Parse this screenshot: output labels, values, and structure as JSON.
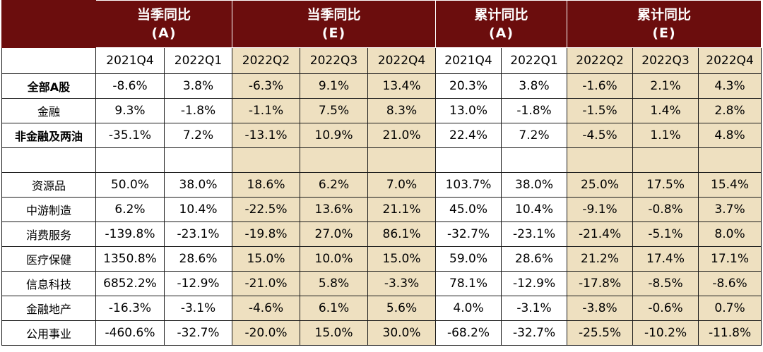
{
  "header": {
    "groups": [
      {
        "line1": "当季同比",
        "line2": "(A)",
        "span": 2
      },
      {
        "line1": "当季同比",
        "line2": "(E)",
        "span": 3
      },
      {
        "line1": "累计同比",
        "line2": "(A)",
        "span": 2
      },
      {
        "line1": "累计同比",
        "line2": "(E)",
        "span": 3
      }
    ],
    "quarters": [
      "2021Q4",
      "2022Q1",
      "2022Q2",
      "2022Q3",
      "2022Q4",
      "2021Q4",
      "2022Q1",
      "2022Q2",
      "2022Q3",
      "2022Q4"
    ]
  },
  "rows": [
    {
      "label": "全部A股",
      "bold": true,
      "values": [
        "-8.6%",
        "3.8%",
        "-6.3%",
        "9.1%",
        "13.4%",
        "20.3%",
        "3.8%",
        "-1.6%",
        "2.1%",
        "4.3%"
      ]
    },
    {
      "label": "金融",
      "bold": false,
      "values": [
        "9.3%",
        "-1.8%",
        "-1.1%",
        "7.5%",
        "8.3%",
        "13.0%",
        "-1.8%",
        "-1.5%",
        "1.4%",
        "2.8%"
      ]
    },
    {
      "label": "非金融及两油",
      "bold": true,
      "values": [
        "-35.1%",
        "7.2%",
        "-13.1%",
        "10.9%",
        "21.0%",
        "22.4%",
        "7.2%",
        "-4.5%",
        "1.1%",
        "4.8%"
      ]
    },
    {
      "label": "",
      "bold": false,
      "blank": true,
      "values": [
        "",
        "",
        "",
        "",
        "",
        "",
        "",
        "",
        "",
        ""
      ]
    },
    {
      "label": "资源品",
      "bold": false,
      "values": [
        "50.0%",
        "38.0%",
        "18.6%",
        "6.2%",
        "7.0%",
        "103.7%",
        "38.0%",
        "25.0%",
        "17.5%",
        "15.4%"
      ]
    },
    {
      "label": "中游制造",
      "bold": false,
      "values": [
        "6.2%",
        "10.4%",
        "-22.5%",
        "13.6%",
        "21.1%",
        "45.0%",
        "10.4%",
        "-9.1%",
        "-0.8%",
        "3.7%"
      ]
    },
    {
      "label": "消费服务",
      "bold": false,
      "values": [
        "-139.8%",
        "-23.1%",
        "-19.8%",
        "27.0%",
        "86.1%",
        "-32.7%",
        "-23.1%",
        "-21.4%",
        "-5.1%",
        "8.0%"
      ]
    },
    {
      "label": "医疗保健",
      "bold": false,
      "values": [
        "1350.8%",
        "28.6%",
        "15.0%",
        "10.0%",
        "15.0%",
        "59.0%",
        "28.6%",
        "21.2%",
        "17.4%",
        "17.1%"
      ]
    },
    {
      "label": "信息科技",
      "bold": false,
      "values": [
        "6852.2%",
        "-12.9%",
        "-21.0%",
        "5.8%",
        "-3.3%",
        "78.1%",
        "-12.9%",
        "-17.8%",
        "-8.5%",
        "-8.6%"
      ]
    },
    {
      "label": "金融地产",
      "bold": false,
      "values": [
        "-16.3%",
        "-3.1%",
        "-4.6%",
        "6.1%",
        "5.6%",
        "4.0%",
        "-3.1%",
        "-3.8%",
        "-0.6%",
        "0.7%"
      ]
    },
    {
      "label": "公用事业",
      "bold": false,
      "values": [
        "-460.6%",
        "-32.7%",
        "-20.0%",
        "15.0%",
        "30.0%",
        "-68.2%",
        "-32.7%",
        "-25.5%",
        "-10.2%",
        "-11.8%"
      ]
    }
  ],
  "estimate_columns": [
    2,
    3,
    4,
    7,
    8,
    9
  ],
  "colors": {
    "header_bg": "#6b0d0d",
    "header_text": "#ffffff",
    "estimate_bg": "#eee0c0",
    "border": "#1a1a1a"
  }
}
